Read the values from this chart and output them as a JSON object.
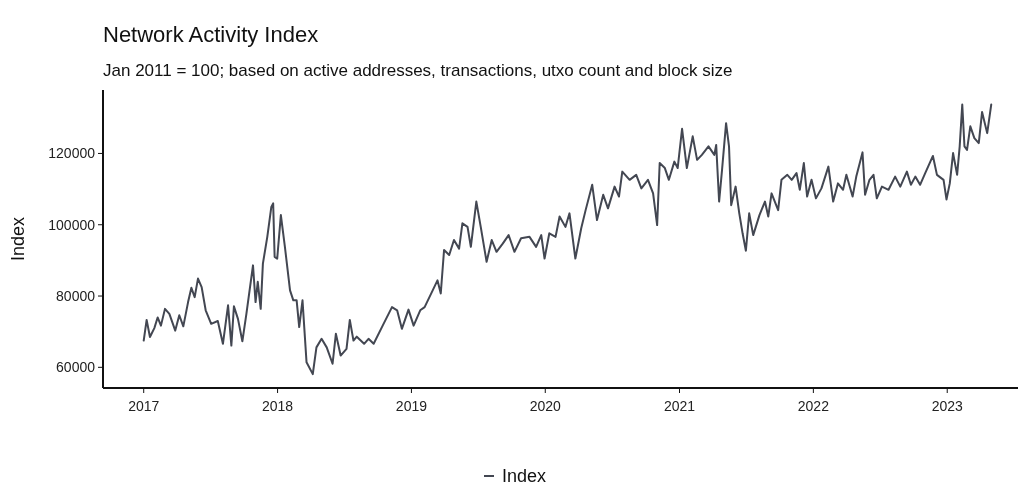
{
  "chart_data": {
    "type": "line",
    "title": "Network Activity Index",
    "subtitle": "Jan 2011 = 100; based on active addresses, transactions, utxo count and block size",
    "ylabel": "Index",
    "x": [
      "2017-01-01",
      "2017-01-09",
      "2017-01-18",
      "2017-01-30",
      "2017-02-08",
      "2017-02-17",
      "2017-02-28",
      "2017-03-12",
      "2017-03-28",
      "2017-04-08",
      "2017-04-19",
      "2017-05-02",
      "2017-05-11",
      "2017-05-20",
      "2017-05-29",
      "2017-06-08",
      "2017-06-19",
      "2017-07-04",
      "2017-07-22",
      "2017-08-05",
      "2017-08-19",
      "2017-08-28",
      "2017-09-04",
      "2017-09-15",
      "2017-09-27",
      "2017-10-08",
      "2017-10-26",
      "2017-11-02",
      "2017-11-08",
      "2017-11-16",
      "2017-11-22",
      "2017-12-04",
      "2017-12-15",
      "2017-12-20",
      "2017-12-24",
      "2017-12-31",
      "2018-01-10",
      "2018-01-21",
      "2018-02-04",
      "2018-02-13",
      "2018-02-22",
      "2018-03-01",
      "2018-03-10",
      "2018-03-21",
      "2018-04-07",
      "2018-04-17",
      "2018-05-01",
      "2018-05-15",
      "2018-05-31",
      "2018-06-09",
      "2018-06-22",
      "2018-07-08",
      "2018-07-17",
      "2018-07-27",
      "2018-08-05",
      "2018-08-25",
      "2018-09-06",
      "2018-09-20",
      "2018-10-17",
      "2018-11-09",
      "2018-11-23",
      "2018-12-06",
      "2018-12-24",
      "2019-01-07",
      "2019-01-25",
      "2019-02-06",
      "2019-02-28",
      "2019-03-13",
      "2019-03-22",
      "2019-03-31",
      "2019-04-14",
      "2019-04-27",
      "2019-05-11",
      "2019-05-20",
      "2019-06-03",
      "2019-06-12",
      "2019-06-27",
      "2019-07-09",
      "2019-07-25",
      "2019-08-08",
      "2019-08-21",
      "2019-09-07",
      "2019-09-23",
      "2019-10-09",
      "2019-10-27",
      "2019-11-19",
      "2019-12-07",
      "2019-12-21",
      "2019-12-30",
      "2020-01-12",
      "2020-01-29",
      "2020-02-09",
      "2020-02-25",
      "2020-03-07",
      "2020-03-23",
      "2020-04-08",
      "2020-04-20",
      "2020-05-08",
      "2020-05-21",
      "2020-06-07",
      "2020-06-20",
      "2020-07-08",
      "2020-07-20",
      "2020-07-29",
      "2020-08-18",
      "2020-09-05",
      "2020-09-19",
      "2020-10-07",
      "2020-10-21",
      "2020-11-01",
      "2020-11-08",
      "2020-11-22",
      "2020-12-03",
      "2020-12-18",
      "2020-12-27",
      "2021-01-08",
      "2021-01-21",
      "2021-02-06",
      "2021-02-18",
      "2021-03-03",
      "2021-03-21",
      "2021-04-06",
      "2021-04-11",
      "2021-04-19",
      "2021-04-27",
      "2021-05-08",
      "2021-05-16",
      "2021-05-22",
      "2021-06-03",
      "2021-06-13",
      "2021-06-22",
      "2021-07-01",
      "2021-07-10",
      "2021-07-21",
      "2021-08-07",
      "2021-08-22",
      "2021-08-31",
      "2021-09-09",
      "2021-09-27",
      "2021-10-06",
      "2021-10-22",
      "2021-11-03",
      "2021-11-16",
      "2021-11-25",
      "2021-12-06",
      "2021-12-15",
      "2021-12-27",
      "2022-01-08",
      "2022-01-23",
      "2022-02-11",
      "2022-02-24",
      "2022-03-09",
      "2022-03-23",
      "2022-04-01",
      "2022-04-18",
      "2022-04-28",
      "2022-05-15",
      "2022-05-22",
      "2022-06-03",
      "2022-06-14",
      "2022-06-23",
      "2022-07-07",
      "2022-07-25",
      "2022-08-12",
      "2022-08-26",
      "2022-09-13",
      "2022-09-24",
      "2022-10-06",
      "2022-10-19",
      "2022-11-02",
      "2022-11-16",
      "2022-11-23",
      "2022-12-04",
      "2022-12-22",
      "2022-12-30",
      "2023-01-08",
      "2023-01-17",
      "2023-01-28",
      "2023-02-04",
      "2023-02-11",
      "2023-02-17",
      "2023-02-24",
      "2023-03-05",
      "2023-03-16",
      "2023-03-28",
      "2023-04-06",
      "2023-04-20",
      "2023-05-01"
    ],
    "series": [
      {
        "name": "Index",
        "color": "#434752",
        "values": [
          67500,
          73300,
          68500,
          71000,
          74000,
          71700,
          76400,
          75000,
          70300,
          74600,
          71500,
          78300,
          82300,
          79700,
          84900,
          82500,
          76000,
          72200,
          73000,
          66600,
          77400,
          66100,
          77100,
          73600,
          67300,
          75000,
          88600,
          78300,
          84000,
          76400,
          89100,
          96600,
          105000,
          106000,
          91000,
          90500,
          102700,
          93800,
          81600,
          78800,
          78800,
          71300,
          78800,
          61400,
          58100,
          65600,
          68000,
          65600,
          61000,
          69400,
          63300,
          65200,
          73300,
          67500,
          68600,
          66600,
          68000,
          66600,
          72200,
          76900,
          76000,
          70800,
          76200,
          71700,
          76000,
          76900,
          81600,
          84400,
          80700,
          92900,
          91500,
          95700,
          93300,
          100400,
          99400,
          93800,
          106500,
          99400,
          89600,
          95700,
          92400,
          94700,
          97100,
          92400,
          96200,
          96600,
          93800,
          97100,
          90500,
          97600,
          96600,
          102300,
          99400,
          103200,
          90500,
          99000,
          104100,
          111200,
          101300,
          108400,
          104600,
          110700,
          107900,
          114900,
          112600,
          114000,
          110200,
          112600,
          108800,
          99900,
          117300,
          115900,
          112600,
          117700,
          115900,
          126900,
          115900,
          124800,
          118200,
          119600,
          122000,
          119600,
          122400,
          106500,
          115400,
          128500,
          122000,
          105500,
          110700,
          103200,
          97600,
          92700,
          103200,
          97100,
          102700,
          106500,
          102300,
          108800,
          104100,
          112600,
          114000,
          112600,
          114500,
          109800,
          117300,
          107900,
          112600,
          107400,
          110200,
          116300,
          106500,
          111600,
          109800,
          114000,
          107900,
          113500,
          120300,
          108400,
          112600,
          114000,
          107400,
          110700,
          109800,
          113500,
          110700,
          114900,
          111200,
          113500,
          111200,
          114500,
          117700,
          119300,
          114000,
          112600,
          107100,
          111600,
          120100,
          114000,
          122000,
          133700,
          122000,
          121000,
          127600,
          124300,
          122900,
          131600,
          125700,
          133700
        ]
      }
    ],
    "xlim": [
      "2016-09-12",
      "2023-07-13"
    ],
    "xticks": [
      {
        "value": "2017-01-01",
        "label": "2017"
      },
      {
        "value": "2018-01-01",
        "label": "2018"
      },
      {
        "value": "2019-01-01",
        "label": "2019"
      },
      {
        "value": "2020-01-01",
        "label": "2020"
      },
      {
        "value": "2021-01-01",
        "label": "2021"
      },
      {
        "value": "2022-01-01",
        "label": "2022"
      },
      {
        "value": "2023-01-01",
        "label": "2023"
      }
    ],
    "ylim": [
      54200,
      137800
    ],
    "yticks": [
      60000,
      80000,
      100000,
      120000
    ],
    "grid": false,
    "legend": "bottom",
    "line_style": "solid",
    "marker": "none"
  }
}
